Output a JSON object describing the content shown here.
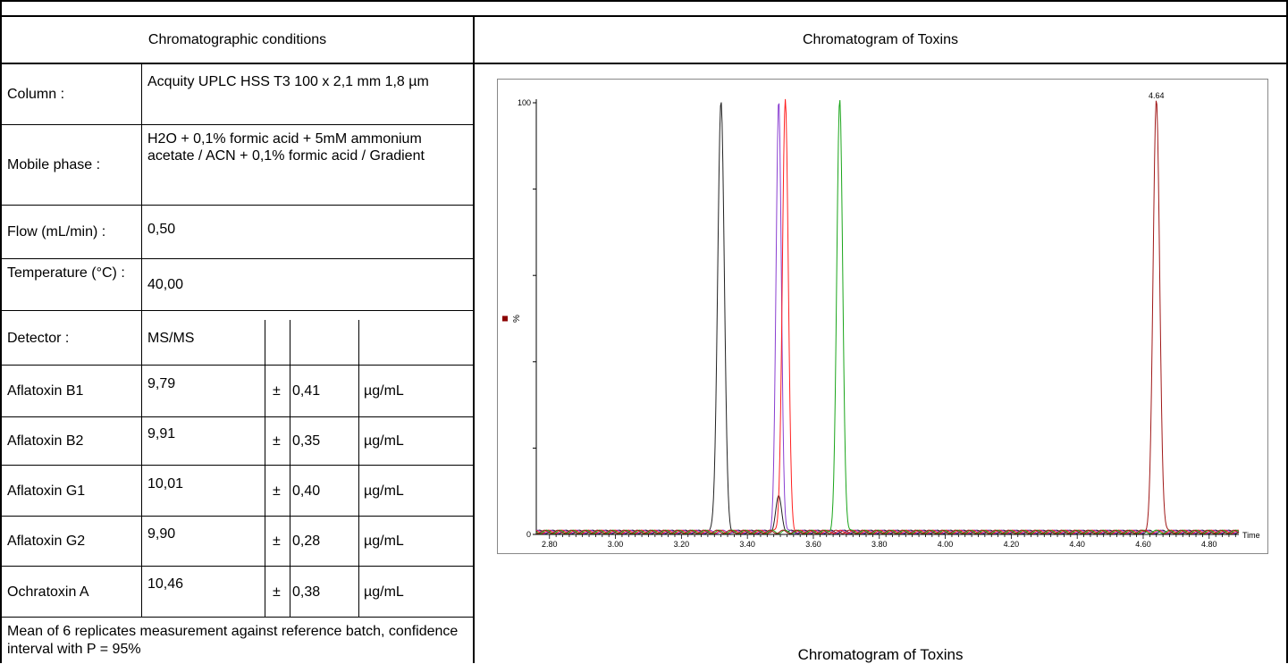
{
  "headers": {
    "left": "Chromatographic conditions",
    "right": "Chromatogram of Toxins"
  },
  "conditions": [
    {
      "label": "Column :",
      "value": "Acquity UPLC HSS T3 100 x 2,1 mm 1,8 µm"
    },
    {
      "label": "Mobile phase :",
      "value": "H2O + 0,1% formic acid + 5mM ammonium acetate / ACN + 0,1% formic acid / Gradient"
    },
    {
      "label": "Flow (mL/min) :",
      "value": "0,50"
    },
    {
      "label": "Temperature (°C) :",
      "value": "40,00"
    },
    {
      "label": "Detector :",
      "value": "MS/MS"
    }
  ],
  "toxins": [
    {
      "name": "Aflatoxin B1",
      "value": "9,79",
      "pm": "±",
      "uncertainty": "0,41",
      "unit": "µg/mL"
    },
    {
      "name": "Aflatoxin B2",
      "value": "9,91",
      "pm": "±",
      "uncertainty": "0,35",
      "unit": "µg/mL"
    },
    {
      "name": "Aflatoxin G1",
      "value": "10,01",
      "pm": "±",
      "uncertainty": "0,40",
      "unit": "µg/mL"
    },
    {
      "name": "Aflatoxin G2",
      "value": "9,90",
      "pm": "±",
      "uncertainty": "0,28",
      "unit": "µg/mL"
    },
    {
      "name": "Ochratoxin A",
      "value": "10,46",
      "pm": "±",
      "uncertainty": "0,38",
      "unit": "µg/mL"
    }
  ],
  "footnote": "Mean of 6 replicates measurement against reference batch, confidence interval with P = 95%",
  "caption": "Chromatogram of Toxins",
  "chart_data": {
    "type": "line",
    "xlabel": "Time",
    "ylabel": "%",
    "xlim": [
      2.76,
      4.89
    ],
    "ylim": [
      0,
      100
    ],
    "x_ticks": [
      "2.80",
      "3.00",
      "3.20",
      "3.40",
      "3.60",
      "3.80",
      "4.00",
      "4.20",
      "4.40",
      "4.60",
      "4.80"
    ],
    "y_ticks": [
      "0",
      "100"
    ],
    "annotations": [
      {
        "x": 4.64,
        "y": 100,
        "text": "4.64"
      }
    ],
    "series": [
      {
        "color": "#222222",
        "peaks": [
          {
            "x": 3.32,
            "y": 100,
            "w": 0.01
          },
          {
            "x": 3.495,
            "y": 8,
            "w": 0.009
          }
        ]
      },
      {
        "color": "#8a3fd1",
        "peaks": [
          {
            "x": 3.495,
            "y": 100,
            "w": 0.008
          }
        ]
      },
      {
        "color": "#ff2020",
        "peaks": [
          {
            "x": 3.515,
            "y": 100,
            "w": 0.009
          }
        ]
      },
      {
        "color": "#1aa51a",
        "peaks": [
          {
            "x": 3.68,
            "y": 100,
            "w": 0.009
          }
        ]
      },
      {
        "color": "#a01818",
        "peaks": [
          {
            "x": 4.64,
            "y": 100,
            "w": 0.01
          }
        ]
      }
    ],
    "grid": false,
    "legend": "none"
  }
}
